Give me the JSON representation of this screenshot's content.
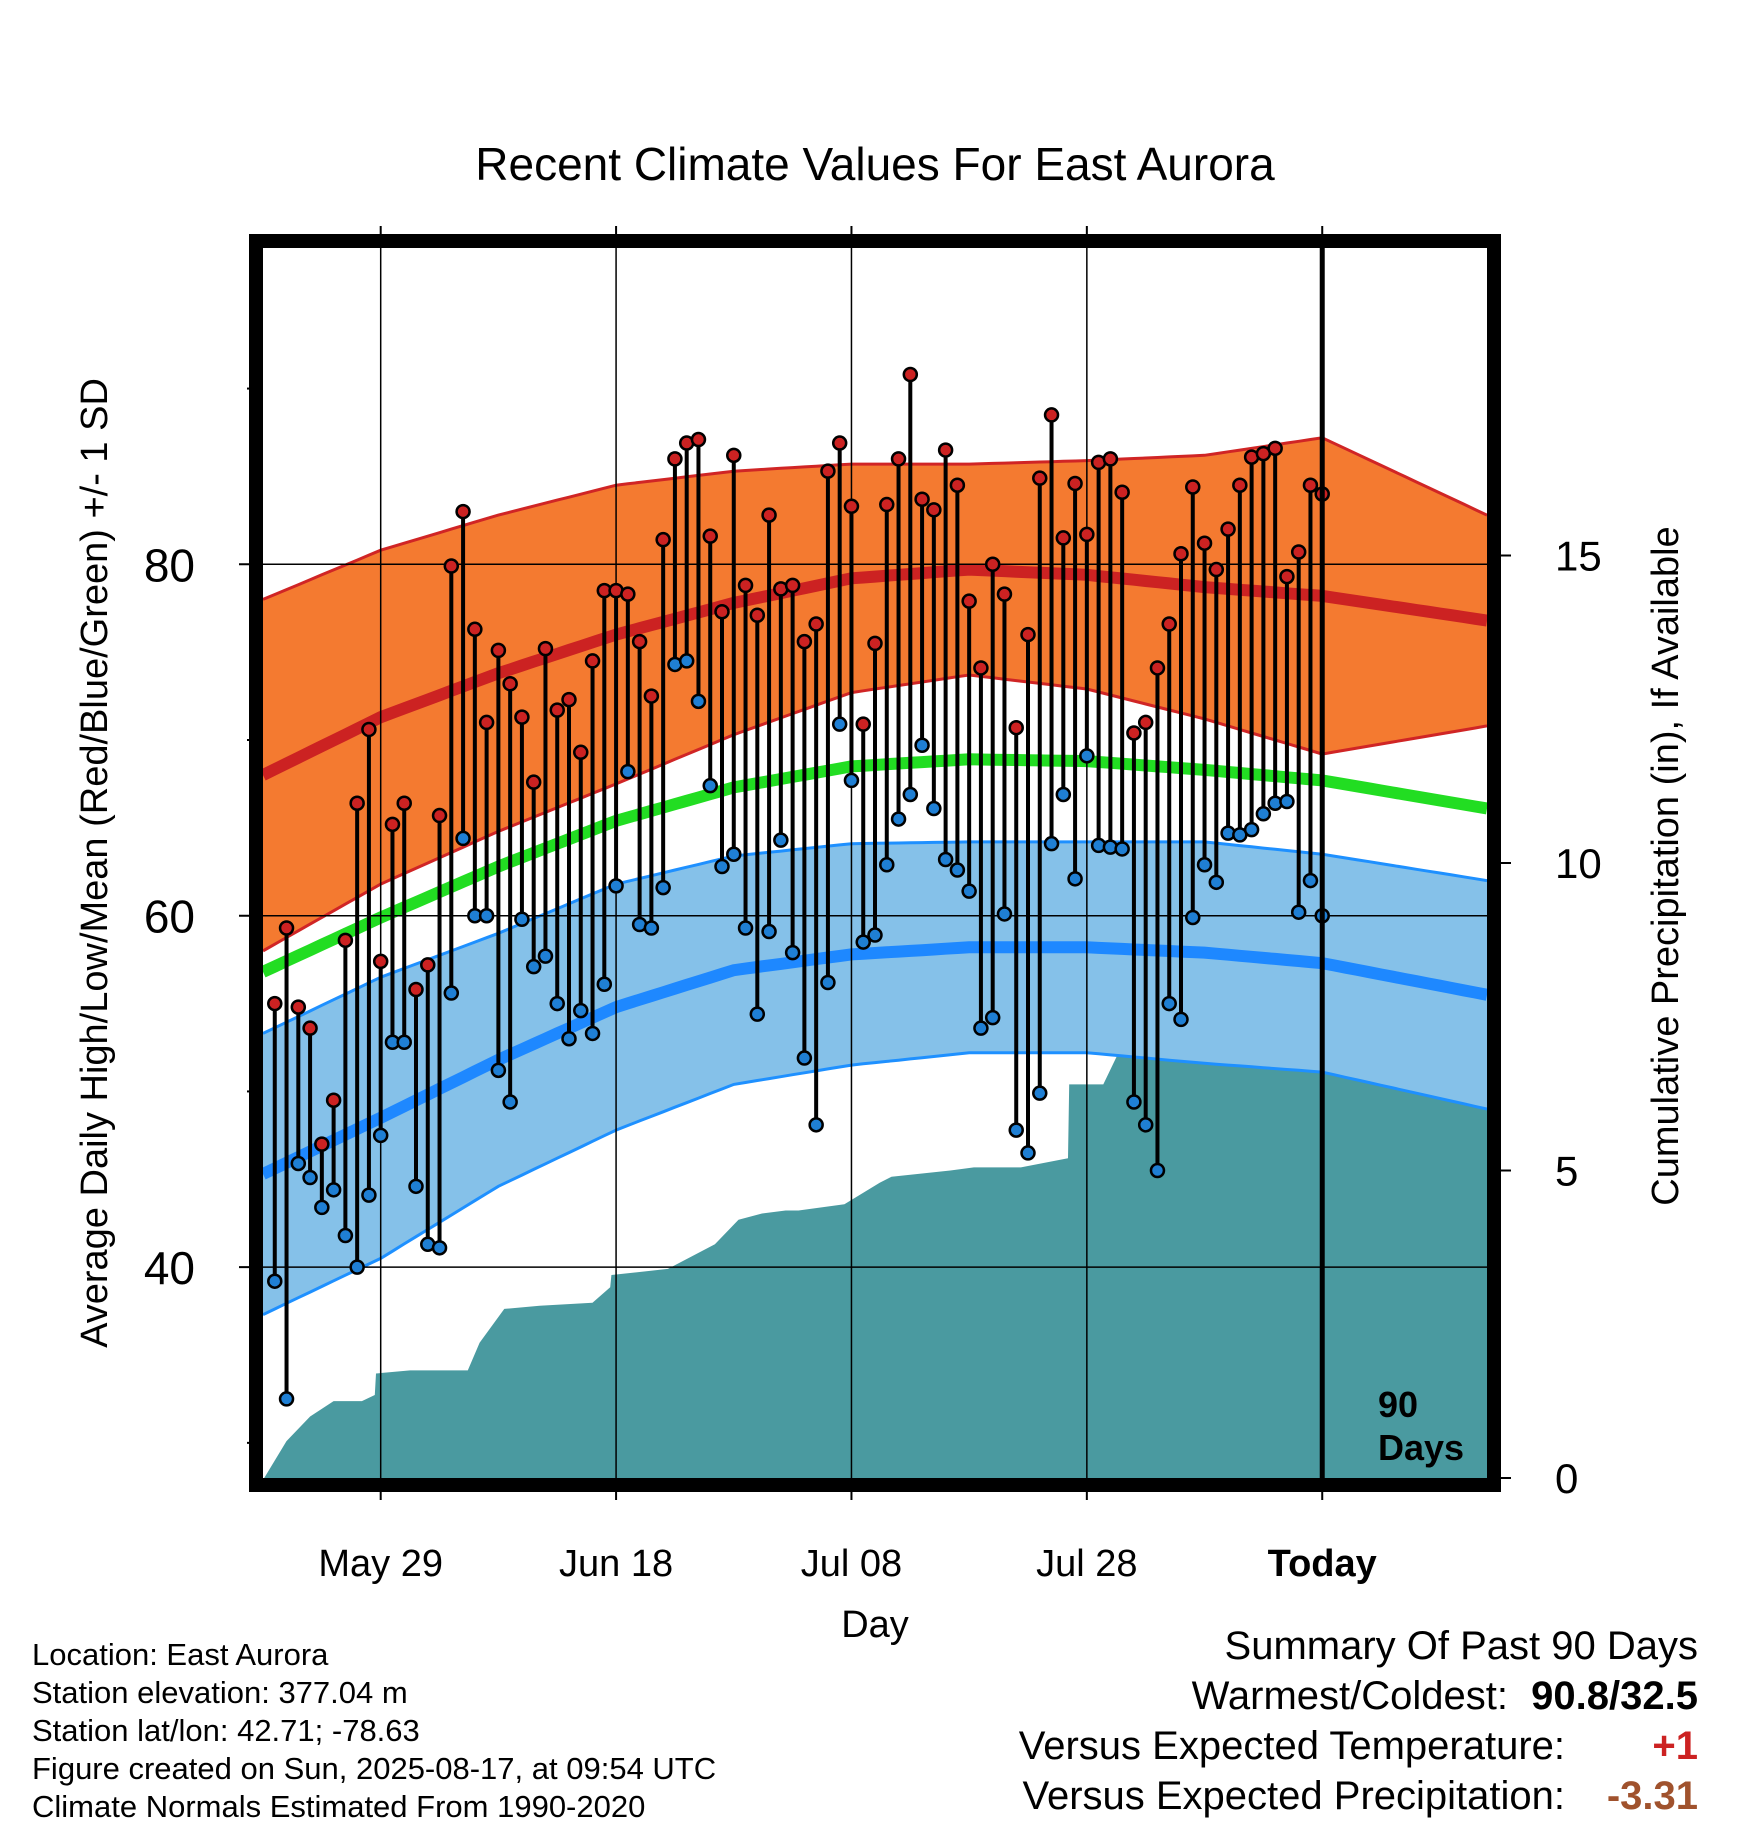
{
  "chart_data": {
    "type": "line",
    "title": "Recent Climate Values For East Aurora",
    "xlabel": "Day",
    "ylabel_left": "Average Daily High/Low/Mean (Red/Blue/Green) +/- 1 SD",
    "ylabel_right": "Cumulative Precipitation (in), If Available",
    "x_range_days": [
      -90,
      14
    ],
    "y_range_temperature": [
      28,
      98
    ],
    "y_range_precipitation": [
      0,
      20
    ],
    "x_tick_labels": [
      {
        "day": -80,
        "label": "May 29"
      },
      {
        "day": -60,
        "label": "Jun 18"
      },
      {
        "day": -40,
        "label": "Jul 08"
      },
      {
        "day": -20,
        "label": "Jul 28"
      },
      {
        "day": 0,
        "label": "Today"
      }
    ],
    "y_tick_labels_left": [
      40,
      60,
      80
    ],
    "y_tick_labels_right": [
      0,
      5,
      10,
      15
    ],
    "period_label": [
      "90",
      "Days"
    ],
    "grid": true,
    "normals": {
      "days": [
        -90,
        -80,
        -70,
        -60,
        -50,
        -40,
        -30,
        -20,
        -10,
        0,
        14
      ],
      "high_mean": [
        68.0,
        71.3,
        73.8,
        76.0,
        77.8,
        79.2,
        79.7,
        79.4,
        78.7,
        78.2,
        76.8
      ],
      "high_sd": [
        10.0,
        9.5,
        9.0,
        8.5,
        7.5,
        6.5,
        6.0,
        6.5,
        7.5,
        9.0,
        6.0
      ],
      "low_mean": [
        45.3,
        48.5,
        51.8,
        54.8,
        56.9,
        57.8,
        58.2,
        58.2,
        57.9,
        57.3,
        55.5
      ],
      "low_sd": [
        8.0,
        8.0,
        7.2,
        7.0,
        6.5,
        6.3,
        6.0,
        6.0,
        6.3,
        6.2,
        6.5
      ],
      "mean": [
        56.8,
        59.9,
        62.8,
        65.4,
        67.3,
        68.5,
        68.9,
        68.8,
        68.3,
        67.7,
        66.1
      ]
    },
    "series": [
      {
        "name": "High",
        "color": "#cc2222",
        "values": [
          55.0,
          59.3,
          54.8,
          53.6,
          47.0,
          49.5,
          58.6,
          66.4,
          70.6,
          57.4,
          65.2,
          66.4,
          55.8,
          57.2,
          65.7,
          79.9,
          83.0,
          76.3,
          71.0,
          75.1,
          73.2,
          71.3,
          67.6,
          75.2,
          71.7,
          72.3,
          69.3,
          74.5,
          78.5,
          78.5,
          78.3,
          75.6,
          72.5,
          81.4,
          86.0,
          86.9,
          87.1,
          81.6,
          77.3,
          86.2,
          78.8,
          77.1,
          82.8,
          78.6,
          78.8,
          75.6,
          76.6,
          85.3,
          86.9,
          83.3,
          70.9,
          75.5,
          83.4,
          86.0,
          90.8,
          83.7,
          83.1,
          86.5,
          84.5,
          77.9,
          74.1,
          80.0,
          78.3,
          70.7,
          76.0,
          84.9,
          88.5,
          81.5,
          84.6,
          81.7,
          85.8,
          86.0,
          84.1,
          70.4,
          71.0,
          74.1,
          76.6,
          80.6,
          84.4,
          81.2,
          79.7,
          82.0,
          84.5,
          86.1,
          86.3,
          86.6,
          79.3,
          80.7,
          84.5,
          84.0
        ]
      },
      {
        "name": "Low",
        "color": "#1f7fd4",
        "values": [
          39.2,
          32.5,
          45.9,
          45.1,
          43.4,
          44.4,
          41.8,
          40.0,
          44.1,
          47.5,
          52.8,
          52.8,
          44.6,
          41.3,
          41.1,
          55.6,
          64.4,
          60.0,
          60.0,
          51.2,
          49.4,
          59.8,
          57.1,
          57.7,
          55.0,
          53.0,
          54.6,
          53.3,
          56.1,
          61.7,
          68.2,
          59.5,
          59.3,
          61.6,
          74.3,
          74.5,
          72.2,
          67.4,
          62.8,
          63.5,
          59.3,
          54.4,
          59.1,
          64.3,
          57.9,
          51.9,
          48.1,
          56.2,
          70.9,
          67.7,
          58.5,
          58.9,
          62.9,
          65.5,
          66.9,
          69.7,
          66.1,
          63.2,
          62.6,
          61.4,
          53.6,
          54.2,
          60.1,
          47.8,
          46.5,
          49.9,
          64.1,
          66.9,
          62.1,
          69.1,
          64.0,
          63.9,
          63.8,
          49.4,
          48.1,
          45.5,
          55.0,
          54.1,
          59.9,
          62.9,
          61.9,
          64.7,
          64.6,
          64.9,
          65.8,
          66.4,
          66.5,
          60.2,
          62.0,
          60.0
        ]
      }
    ],
    "precipitation_cumulative": {
      "color": "#4a9aa0",
      "days": [
        -89.9,
        -88,
        -86,
        -84,
        -81.6,
        -80.5,
        -80.4,
        -77.5,
        -74.5,
        -72.6,
        -71.6,
        -69.5,
        -66.5,
        -62,
        -60.5,
        -60.4,
        -55.6,
        -51.6,
        -49.6,
        -47.6,
        -45.6,
        -44.5,
        -40.6,
        -37.6,
        -36.6,
        -31.6,
        -29.6,
        -27.6,
        -25.6,
        -21.6,
        -21.5,
        -18.6,
        -16.6,
        -5.6,
        -4.6,
        9.2
      ],
      "values": [
        0.0,
        0.6,
        1.0,
        1.25,
        1.25,
        1.35,
        1.7,
        1.75,
        1.75,
        1.75,
        2.2,
        2.75,
        2.8,
        2.85,
        3.1,
        3.3,
        3.4,
        3.8,
        4.2,
        4.3,
        4.35,
        4.35,
        4.45,
        4.8,
        4.9,
        5.0,
        5.05,
        5.05,
        5.05,
        5.2,
        6.4,
        6.4,
        7.2,
        7.25,
        7.5,
        7.5
      ]
    }
  },
  "info": {
    "location": "Location: East Aurora",
    "elevation": "Station elevation: 377.04 m",
    "latlon": "Station lat/lon: 42.71; -78.63",
    "created": "Figure created on Sun, 2025-08-17, at 09:54 UTC",
    "normals": "Climate Normals Estimated From 1990-2020"
  },
  "summary": {
    "title": "Summary Of Past 90 Days",
    "warmest_label": "Warmest/Coldest:",
    "warmest_value": "90.8/32.5",
    "temp_label": "Versus Expected Temperature:",
    "temp_value": "+1",
    "temp_color": "#cc2222",
    "precip_label": "Versus Expected Precipitation:",
    "precip_value": "-3.31",
    "precip_color": "#a0522d"
  }
}
